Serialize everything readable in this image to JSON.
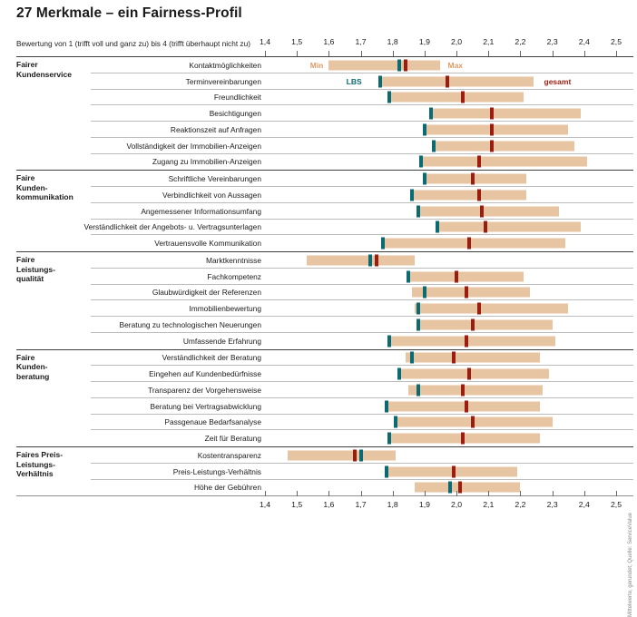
{
  "title": "27 Merkmale – ein Fairness-Profil",
  "subtitle": "Bewertung von 1 (trifft voll und ganz zu) bis 4 (trifft überhaupt nicht zu)",
  "source_note": "Mittelwerte, gerundet; Quelle: ServiceValue",
  "colors": {
    "bar_fill": "#e7c5a2",
    "lbs_marker": "#0b6a72",
    "gesamt_marker": "#9a1d10",
    "minmax_label": "#dd9b67",
    "group_line": "#3f3f3f",
    "row_line": "#bcbcbc",
    "axis_line": "#8f8f8f"
  },
  "chart_data": {
    "type": "range-bar",
    "title": "27 Merkmale – ein Fairness-Profil",
    "axis": {
      "min": 1.4,
      "max": 2.5,
      "step": 0.1,
      "ticks": [
        "1,4",
        "1,5",
        "1,6",
        "1,7",
        "1,8",
        "1,9",
        "2,0",
        "2,1",
        "2,2",
        "2,3",
        "2,4",
        "2,5"
      ],
      "grid": false
    },
    "legend": {
      "min_label": "Min",
      "max_label": "Max",
      "lbs_label": "LBS",
      "gesamt_label": "gesamt"
    },
    "groups": [
      {
        "label": "Fairer Kundenservice",
        "lines": [
          "Fairer",
          "Kundenservice"
        ],
        "items": [
          {
            "label": "Kontaktmöglichkeiten",
            "min": 1.6,
            "lbs": 1.82,
            "gesamt": 1.84,
            "max": 1.95
          },
          {
            "label": "Terminvereinbarungen",
            "min": 1.76,
            "lbs": 1.76,
            "gesamt": 1.97,
            "max": 2.24
          },
          {
            "label": "Freundlichkeit",
            "min": 1.79,
            "lbs": 1.79,
            "gesamt": 2.02,
            "max": 2.21
          },
          {
            "label": "Besichtigungen",
            "min": 1.92,
            "lbs": 1.92,
            "gesamt": 2.11,
            "max": 2.39
          },
          {
            "label": "Reaktionszeit auf Anfragen",
            "min": 1.9,
            "lbs": 1.9,
            "gesamt": 2.11,
            "max": 2.35
          },
          {
            "label": "Vollständigkeit der Immobilien-Anzeigen",
            "min": 1.93,
            "lbs": 1.93,
            "gesamt": 2.11,
            "max": 2.37
          },
          {
            "label": "Zugang zu Immobilien-Anzeigen",
            "min": 1.89,
            "lbs": 1.89,
            "gesamt": 2.07,
            "max": 2.41
          }
        ]
      },
      {
        "label": "Faire Kundenkommunikation",
        "lines": [
          "Faire",
          "Kunden-",
          "kommunikation"
        ],
        "items": [
          {
            "label": "Schriftliche Vereinbarungen",
            "min": 1.9,
            "lbs": 1.9,
            "gesamt": 2.05,
            "max": 2.22
          },
          {
            "label": "Verbindlichkeit von Aussagen",
            "min": 1.86,
            "lbs": 1.86,
            "gesamt": 2.07,
            "max": 2.22
          },
          {
            "label": "Angemessener Informationsumfang",
            "min": 1.88,
            "lbs": 1.88,
            "gesamt": 2.08,
            "max": 2.32
          },
          {
            "label": "Verständlichkeit der Angebots- u. Vertragsunterlagen",
            "min": 1.94,
            "lbs": 1.94,
            "gesamt": 2.09,
            "max": 2.39
          },
          {
            "label": "Vertrauensvolle Kommunikation",
            "min": 1.77,
            "lbs": 1.77,
            "gesamt": 2.04,
            "max": 2.34
          }
        ]
      },
      {
        "label": "Faire Leistungsqualität",
        "lines": [
          "Faire",
          "Leistungs-",
          "qualität"
        ],
        "items": [
          {
            "label": "Marktkenntnisse",
            "min": 1.53,
            "lbs": 1.73,
            "gesamt": 1.75,
            "max": 1.87
          },
          {
            "label": "Fachkompetenz",
            "min": 1.85,
            "lbs": 1.85,
            "gesamt": 2.0,
            "max": 2.21
          },
          {
            "label": "Glaubwürdigkeit der Referenzen",
            "min": 1.86,
            "lbs": 1.9,
            "gesamt": 2.03,
            "max": 2.23
          },
          {
            "label": "Immobilienbewertung",
            "min": 1.87,
            "lbs": 1.88,
            "gesamt": 2.07,
            "max": 2.35
          },
          {
            "label": "Beratung zu technologischen Neuerungen",
            "min": 1.88,
            "lbs": 1.88,
            "gesamt": 2.05,
            "max": 2.3
          },
          {
            "label": "Umfassende Erfahrung",
            "min": 1.79,
            "lbs": 1.79,
            "gesamt": 2.03,
            "max": 2.31
          }
        ]
      },
      {
        "label": "Faire Kundenberatung",
        "lines": [
          "Faire",
          "Kunden-",
          "beratung"
        ],
        "items": [
          {
            "label": "Verständlichkeit der Beratung",
            "min": 1.84,
            "lbs": 1.86,
            "gesamt": 1.99,
            "max": 2.26
          },
          {
            "label": "Eingehen auf Kundenbedürfnisse",
            "min": 1.82,
            "lbs": 1.82,
            "gesamt": 2.04,
            "max": 2.29
          },
          {
            "label": "Transparenz der Vorgehensweise",
            "min": 1.85,
            "lbs": 1.88,
            "gesamt": 2.02,
            "max": 2.27
          },
          {
            "label": "Beratung bei Vertragsabwicklung",
            "min": 1.78,
            "lbs": 1.78,
            "gesamt": 2.03,
            "max": 2.26
          },
          {
            "label": "Passgenaue Bedarfsanalyse",
            "min": 1.81,
            "lbs": 1.81,
            "gesamt": 2.05,
            "max": 2.3
          },
          {
            "label": "Zeit für Beratung",
            "min": 1.79,
            "lbs": 1.79,
            "gesamt": 2.02,
            "max": 2.26
          }
        ]
      },
      {
        "label": "Faires Preis-Leistungs-Verhältnis",
        "lines": [
          "Faires Preis-",
          "Leistungs-",
          "Verhältnis"
        ],
        "items": [
          {
            "label": "Kostentransparenz",
            "min": 1.47,
            "lbs": 1.7,
            "gesamt": 1.68,
            "max": 1.81
          },
          {
            "label": "Preis-Leistungs-Verhältnis",
            "min": 1.78,
            "lbs": 1.78,
            "gesamt": 1.99,
            "max": 2.19
          },
          {
            "label": "Höhe der Gebühren",
            "min": 1.87,
            "lbs": 1.98,
            "gesamt": 2.01,
            "max": 2.2
          }
        ]
      }
    ]
  }
}
